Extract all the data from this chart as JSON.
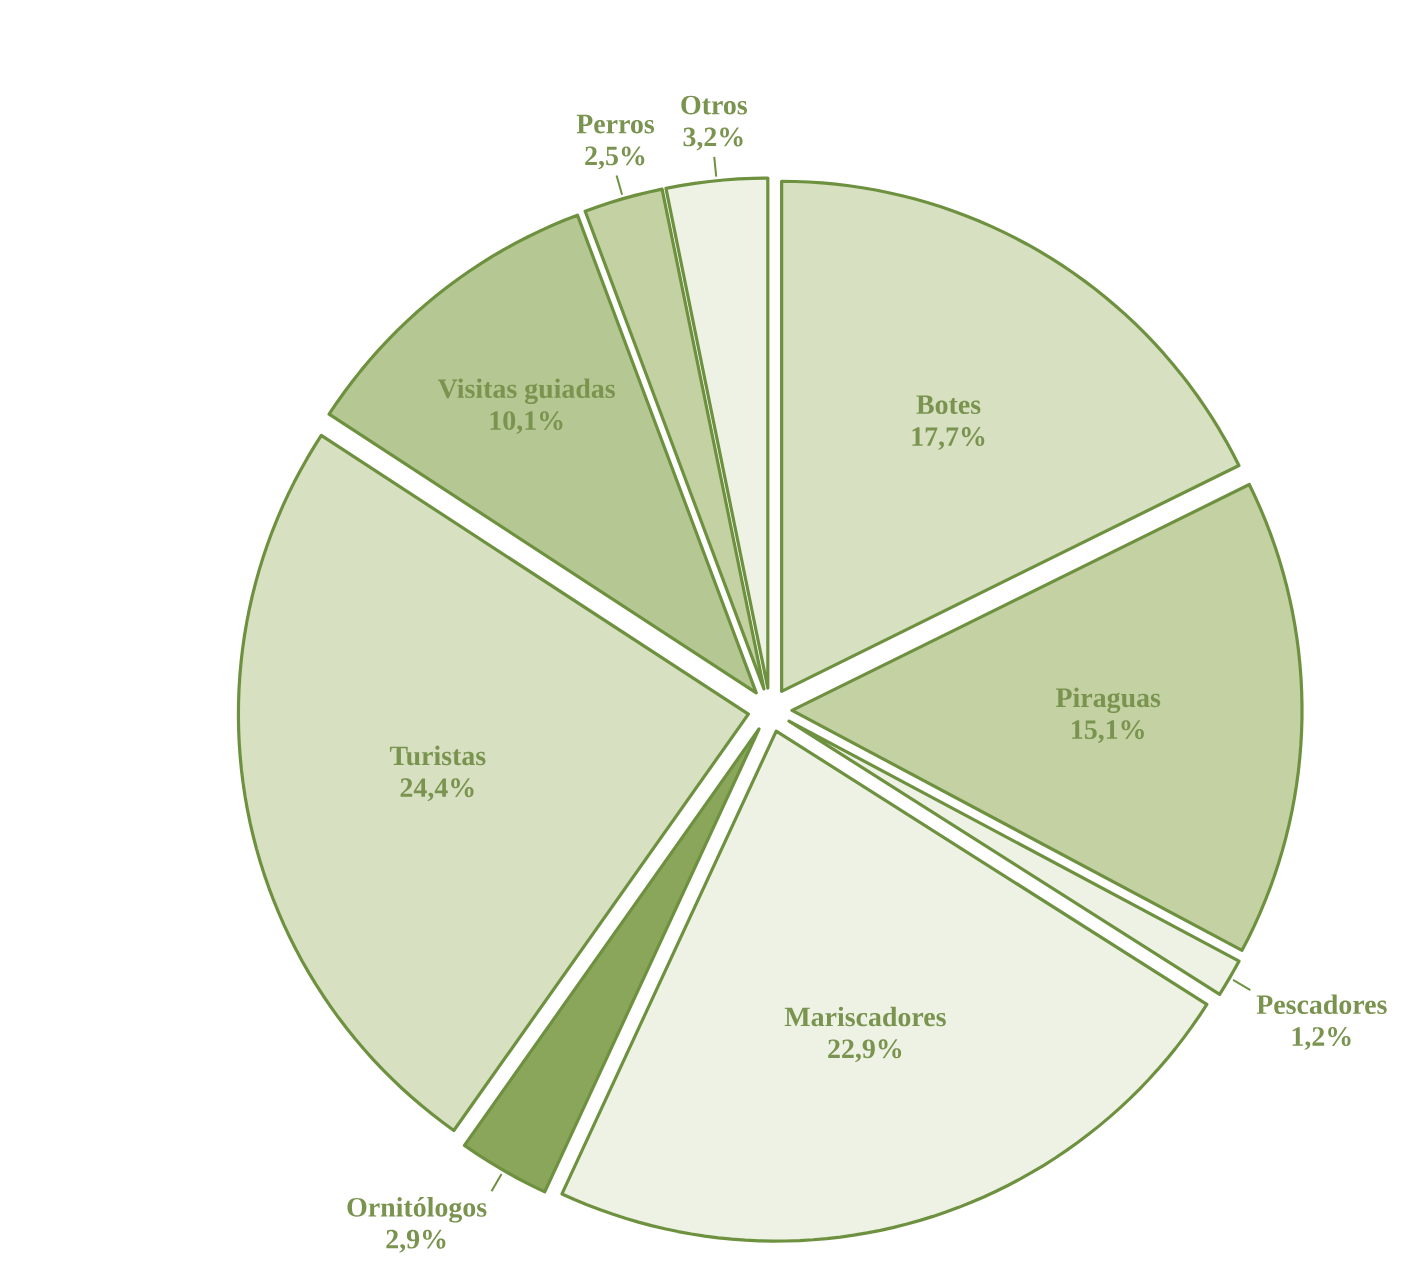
{
  "chart_data": {
    "type": "pie",
    "categories": [
      "Botes",
      "Piraguas",
      "Pescadores",
      "Mariscadores",
      "Ornitólogos",
      "Turistas",
      "Visitas guiadas",
      "Perros",
      "Otros"
    ],
    "values": [
      17.7,
      15.1,
      1.2,
      22.9,
      2.9,
      24.4,
      10.1,
      2.5,
      3.2
    ],
    "value_labels": [
      "17,7%",
      "15,1%",
      "1,2%",
      "22,9%",
      "2,9%",
      "24,4%",
      "10,1%",
      "2,5%",
      "3,2%"
    ],
    "colors": [
      "#d7e0c0",
      "#c3d1a3",
      "#eef2e4",
      "#eef2e4",
      "#8aa65a",
      "#d7e0c0",
      "#b5c792",
      "#c3d1a3",
      "#eef2e4"
    ]
  }
}
